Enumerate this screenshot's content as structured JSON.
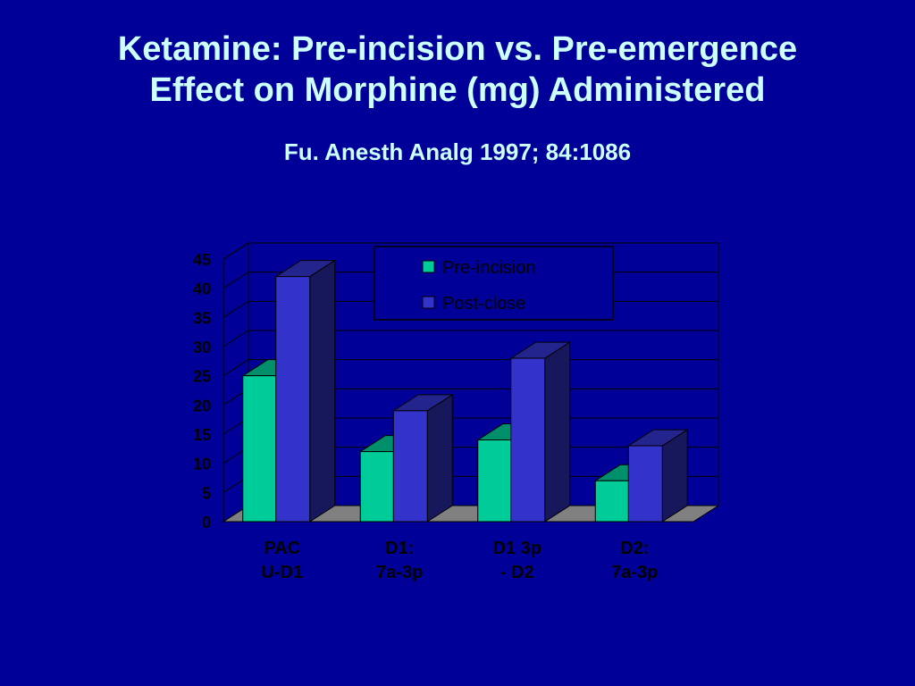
{
  "slide": {
    "title_line1": "Ketamine:  Pre-incision vs. Pre-emergence",
    "title_line2": "Effect on Morphine (mg) Administered",
    "citation": "Fu.  Anesth Analg 1997; 84:1086"
  },
  "colors": {
    "background": "#000099",
    "title_text": "#ccffff",
    "axis_text": "#000000",
    "pre_incision": "#00cc99",
    "post_close": "#3333cc",
    "floor": "#808080",
    "gridline": "#000000"
  },
  "chart_data": {
    "type": "bar",
    "style": "3d-clustered-column",
    "title": "",
    "xlabel": "",
    "ylabel": "",
    "categories": [
      [
        "PAC",
        "U-D1"
      ],
      [
        "D1:",
        "7a-3p"
      ],
      [
        "D1 3p",
        "- D2"
      ],
      [
        "D2:",
        "7a-3p"
      ]
    ],
    "series": [
      {
        "name": "Pre-incision",
        "values": [
          25,
          12,
          14,
          7
        ],
        "color": "#00cc99"
      },
      {
        "name": "Post-close",
        "values": [
          42,
          19,
          28,
          13
        ],
        "color": "#3333cc"
      }
    ],
    "ylim": [
      0,
      45
    ],
    "yticks": [
      0,
      5,
      10,
      15,
      20,
      25,
      30,
      35,
      40,
      45
    ],
    "grid": true,
    "legend_position": "top-center"
  }
}
